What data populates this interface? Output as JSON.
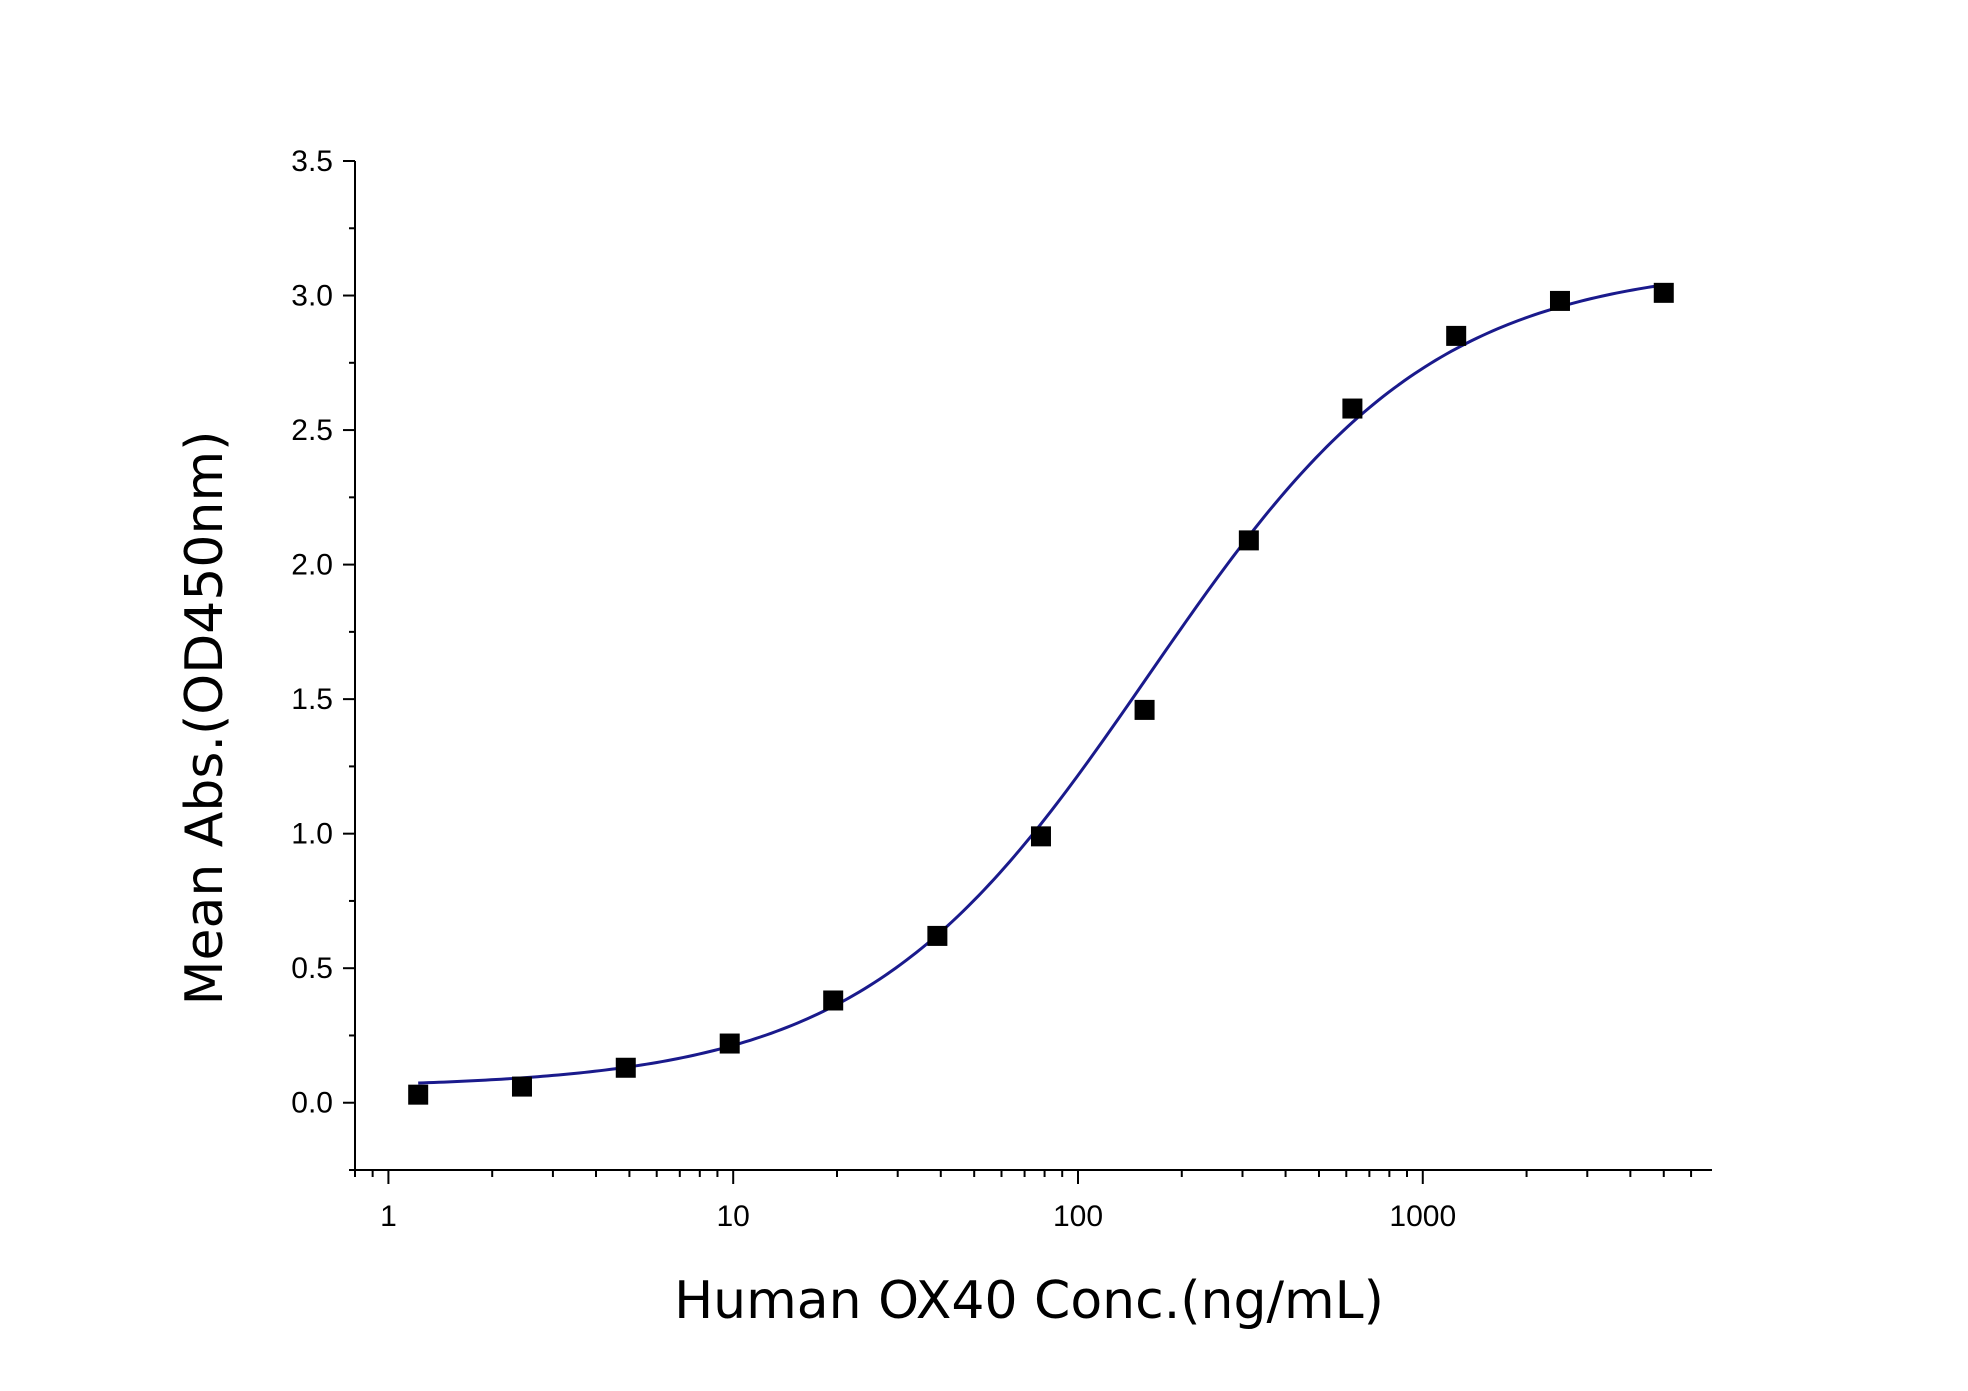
{
  "chart_data": {
    "type": "scatter",
    "xlabel": "Human OX40 Conc.(ng/mL)",
    "ylabel": "Mean Abs.(OD450nm)",
    "x_scale": "log",
    "xlim": [
      0.8,
      6900
    ],
    "ylim": [
      -0.25,
      3.5
    ],
    "x_ticks": [
      1,
      10,
      100,
      1000
    ],
    "x_tick_labels": [
      "1",
      "10",
      "100",
      "1000"
    ],
    "y_ticks": [
      0.0,
      0.5,
      1.0,
      1.5,
      2.0,
      2.5,
      3.0,
      3.5
    ],
    "y_tick_labels": [
      "0.0",
      "0.5",
      "1.0",
      "1.5",
      "2.0",
      "2.5",
      "3.0",
      "3.5"
    ],
    "grid": false,
    "legend": "none",
    "series": [
      {
        "marker": "square",
        "color": "#000000",
        "x": [
          1.22,
          2.44,
          4.88,
          9.77,
          19.5,
          39.1,
          78.1,
          156,
          313,
          625,
          1250,
          2500,
          5000
        ],
        "y": [
          0.03,
          0.06,
          0.13,
          0.22,
          0.38,
          0.62,
          0.99,
          1.46,
          2.09,
          2.58,
          2.85,
          2.98,
          3.01
        ]
      }
    ],
    "fit": {
      "kind": "4PL",
      "color": "#1a1a8c",
      "bottom": 0.055,
      "top": 3.12,
      "ec50": 160,
      "hill": 1.05,
      "x_range": [
        1.22,
        5000
      ]
    }
  }
}
